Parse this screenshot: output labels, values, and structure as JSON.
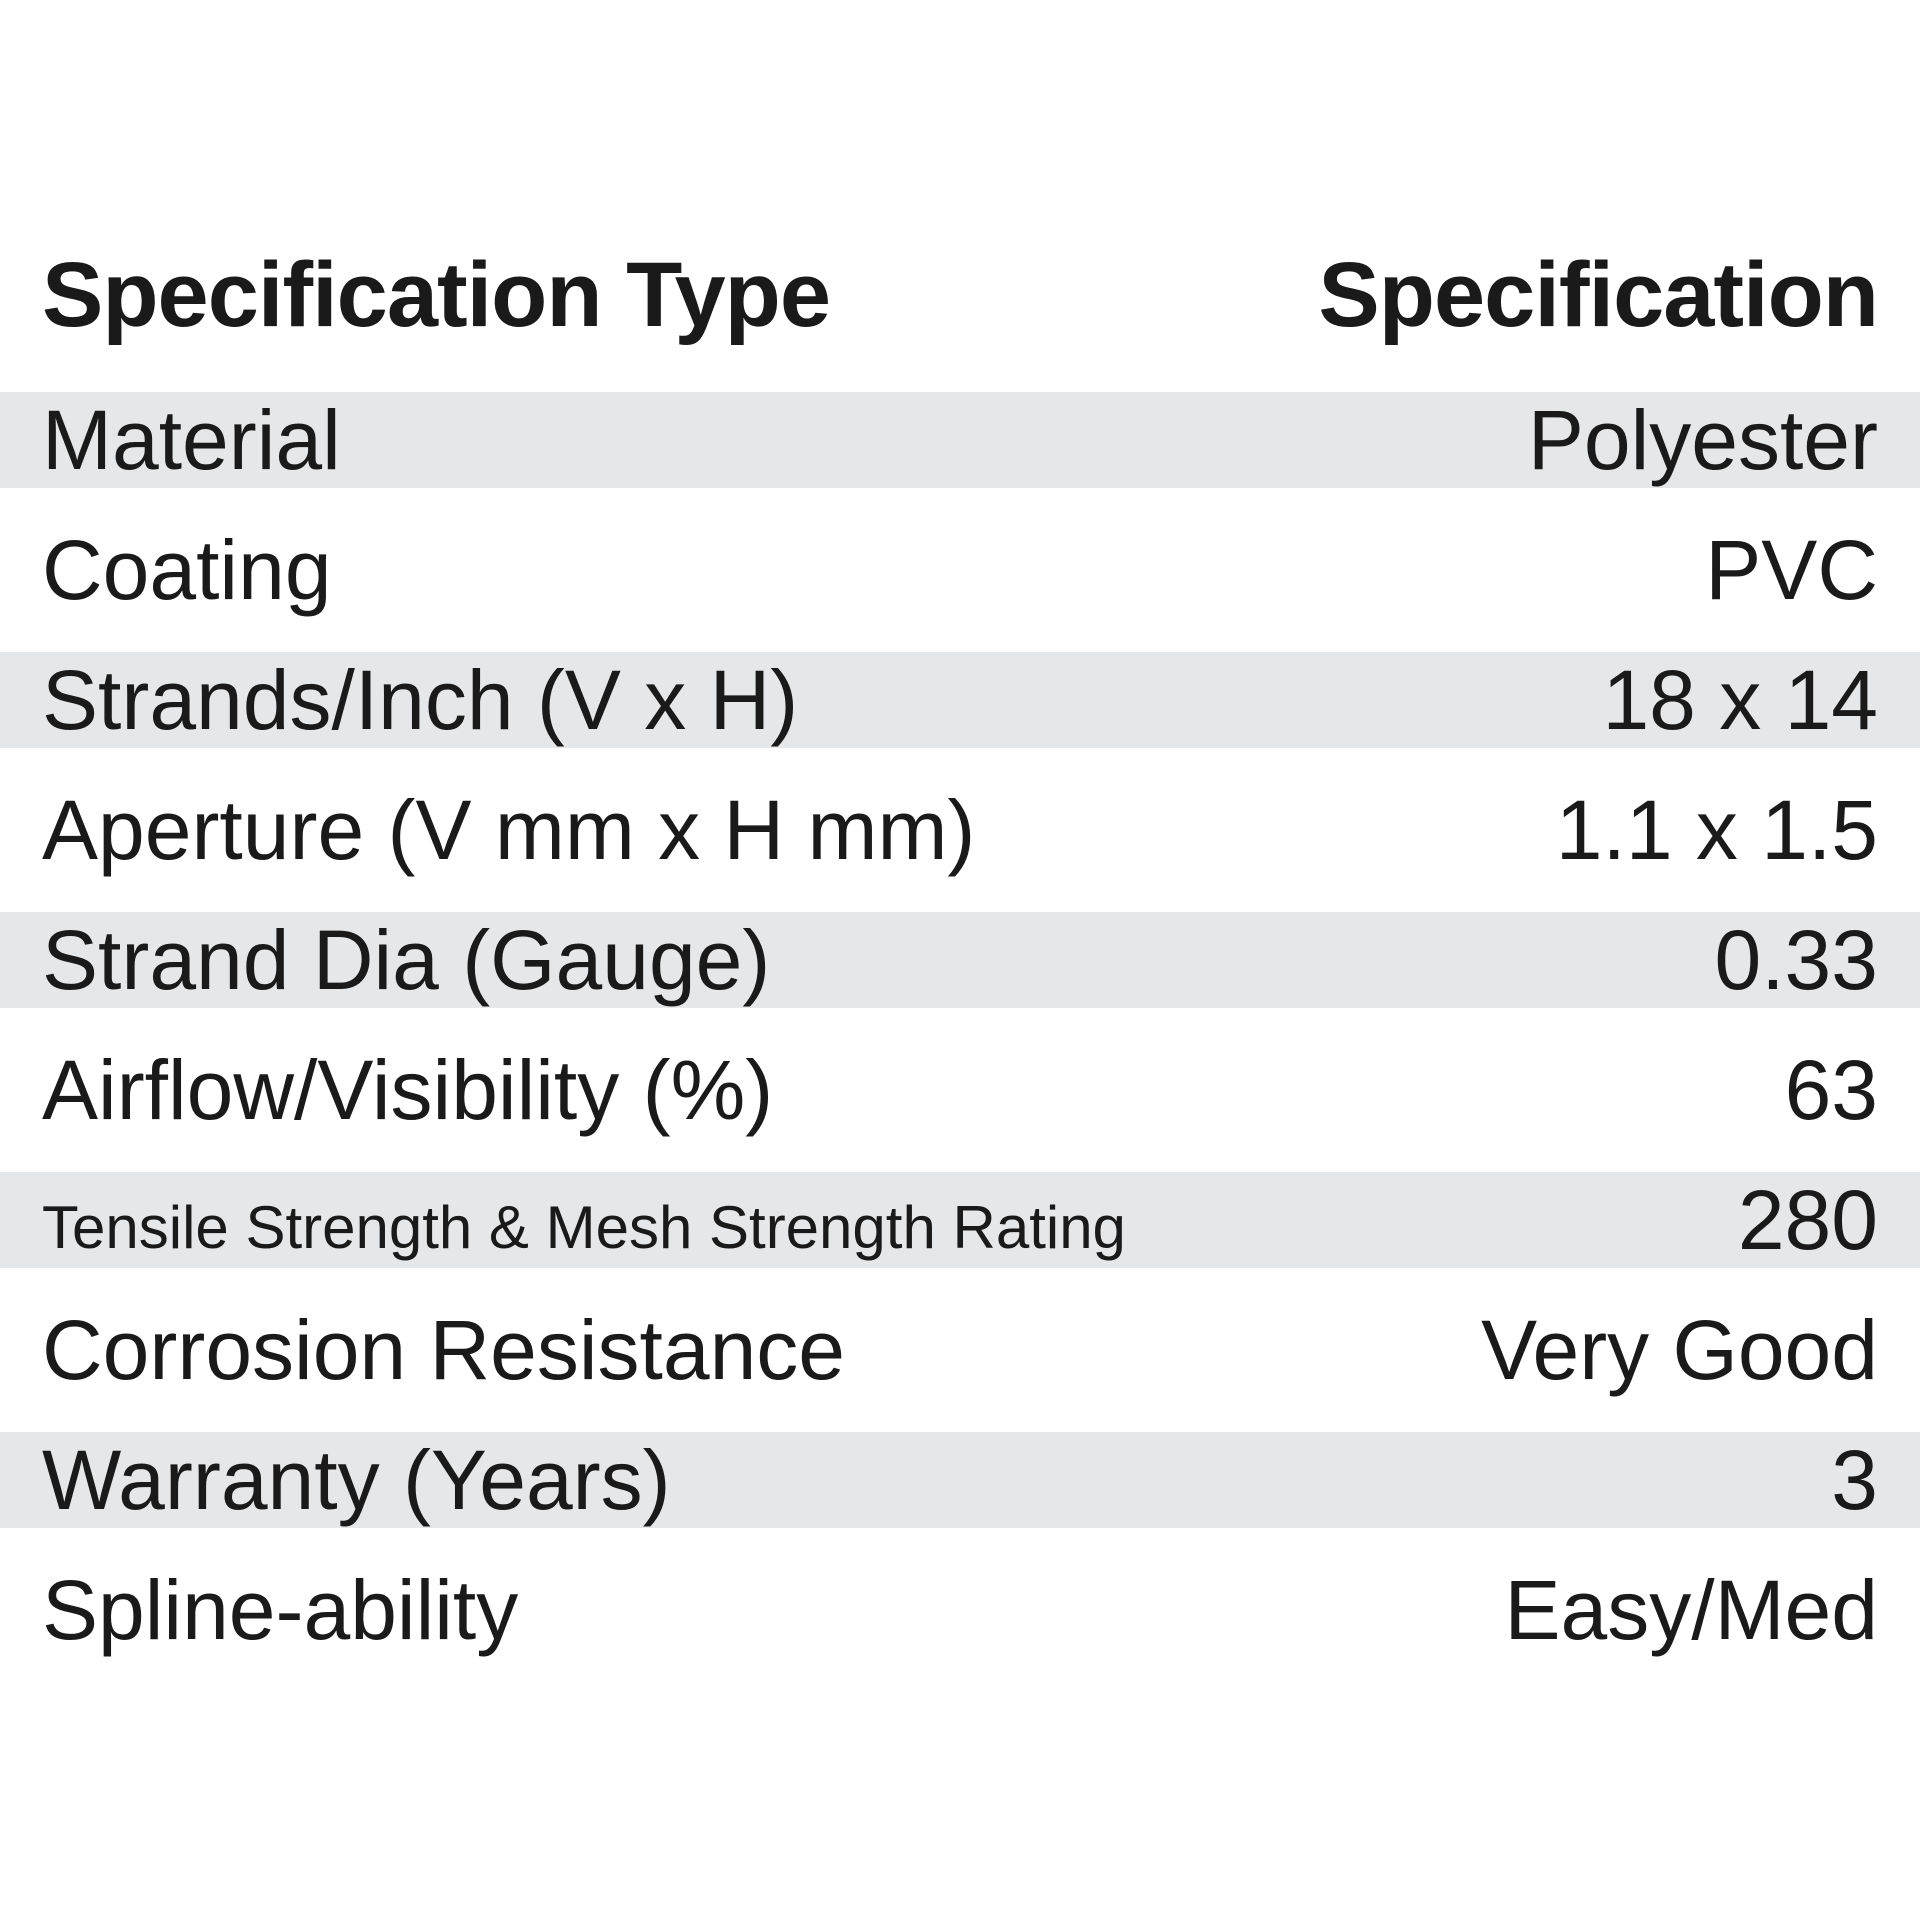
{
  "header": {
    "type_label": "Specification Type",
    "value_label": "Specification"
  },
  "rows": [
    {
      "label": "Material",
      "value": "Polyester"
    },
    {
      "label": "Coating",
      "value": "PVC"
    },
    {
      "label": "Strands/Inch (V x H)",
      "value": "18 x 14"
    },
    {
      "label": "Aperture (V mm x H mm)",
      "value": "1.1 x 1.5"
    },
    {
      "label": "Strand Dia (Gauge)",
      "value": "0.33"
    },
    {
      "label": "Airflow/Visibility (%)",
      "value": "63"
    },
    {
      "label": "Tensile Strength & Mesh Strength Rating",
      "value": "280"
    },
    {
      "label": "Corrosion Resistance",
      "value": "Very Good"
    },
    {
      "label": "Warranty (Years)",
      "value": "3"
    },
    {
      "label": "Spline-ability",
      "value": "Easy/Med"
    }
  ],
  "colors": {
    "shade": "#e6e7e8",
    "text": "#1a1a1a"
  }
}
